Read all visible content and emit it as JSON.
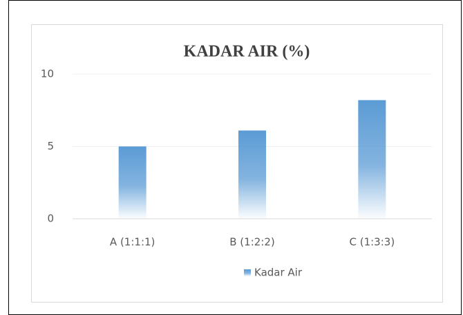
{
  "chart_data": {
    "type": "bar",
    "title": "KADAR AIR (%)",
    "categories": [
      "A (1:1:1)",
      "B (1:2:2)",
      "C (1:3:3)"
    ],
    "series": [
      {
        "name": "Kadar Air",
        "color": "#5b9bd5",
        "values": [
          5.0,
          6.1,
          8.2
        ]
      }
    ],
    "ylim": [
      0,
      10
    ],
    "yticks": [
      0,
      5,
      10
    ],
    "grid": true,
    "legend": "bottom"
  }
}
